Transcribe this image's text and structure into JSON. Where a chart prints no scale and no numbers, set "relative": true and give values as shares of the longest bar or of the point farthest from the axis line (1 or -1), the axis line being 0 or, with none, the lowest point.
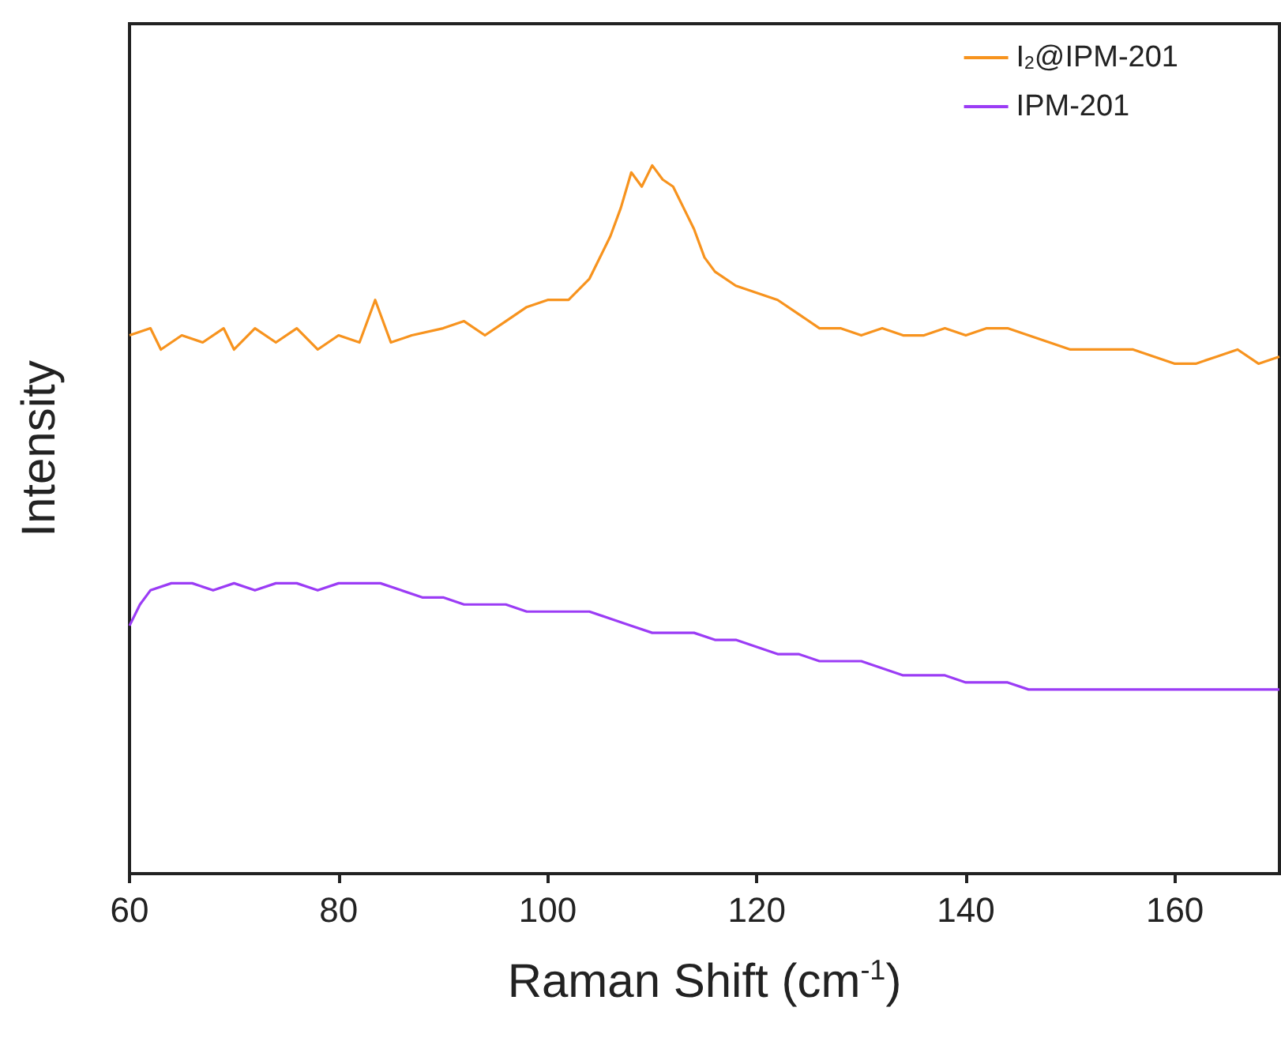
{
  "chart_data": {
    "type": "line",
    "xlabel": "Raman Shift (cm$^{-1}$)",
    "ylabel": "Intensity",
    "relative": true,
    "xlim": [
      60,
      170
    ],
    "xticks": [
      60,
      80,
      100,
      120,
      140,
      160
    ],
    "legend": "top right",
    "marker": "none",
    "series": [
      {
        "name": "I$_{2}$@IPM-201",
        "color": "#f7931e",
        "x": [
          60,
          62,
          63,
          65,
          67,
          69,
          70,
          72,
          74,
          76,
          78,
          80,
          82,
          83.5,
          85,
          87,
          90,
          92,
          94,
          96,
          98,
          100,
          102,
          104,
          106,
          107,
          108,
          109,
          110,
          111,
          112,
          113,
          114,
          115,
          116,
          118,
          120,
          122,
          124,
          126,
          128,
          130,
          132,
          134,
          136,
          138,
          140,
          142,
          144,
          146,
          148,
          150,
          152,
          154,
          156,
          158,
          160,
          162,
          164,
          166,
          168,
          170
        ],
        "values": [
          0.76,
          0.77,
          0.74,
          0.76,
          0.75,
          0.77,
          0.74,
          0.77,
          0.75,
          0.77,
          0.74,
          0.76,
          0.75,
          0.81,
          0.75,
          0.76,
          0.77,
          0.78,
          0.76,
          0.78,
          0.8,
          0.81,
          0.81,
          0.84,
          0.9,
          0.94,
          0.99,
          0.97,
          1,
          0.98,
          0.97,
          0.94,
          0.91,
          0.87,
          0.85,
          0.83,
          0.82,
          0.81,
          0.79,
          0.77,
          0.77,
          0.76,
          0.77,
          0.76,
          0.76,
          0.77,
          0.76,
          0.77,
          0.77,
          0.76,
          0.75,
          0.74,
          0.74,
          0.74,
          0.74,
          0.73,
          0.72,
          0.72,
          0.73,
          0.74,
          0.72,
          0.73
        ]
      },
      {
        "name": "IPM-201",
        "color": "#9b3cf5",
        "x": [
          60,
          61,
          62,
          64,
          66,
          68,
          70,
          72,
          74,
          76,
          78,
          80,
          82,
          84,
          86,
          88,
          90,
          92,
          94,
          96,
          98,
          100,
          102,
          104,
          106,
          108,
          110,
          112,
          114,
          116,
          118,
          120,
          122,
          124,
          126,
          128,
          130,
          132,
          134,
          136,
          138,
          140,
          142,
          144,
          146,
          148,
          150,
          152,
          154,
          156,
          158,
          160,
          162,
          164,
          166,
          168,
          170
        ],
        "values": [
          0.35,
          0.38,
          0.4,
          0.41,
          0.41,
          0.4,
          0.41,
          0.4,
          0.41,
          0.41,
          0.4,
          0.41,
          0.41,
          0.41,
          0.4,
          0.39,
          0.39,
          0.38,
          0.38,
          0.38,
          0.37,
          0.37,
          0.37,
          0.37,
          0.36,
          0.35,
          0.34,
          0.34,
          0.34,
          0.33,
          0.33,
          0.32,
          0.31,
          0.31,
          0.3,
          0.3,
          0.3,
          0.29,
          0.28,
          0.28,
          0.28,
          0.27,
          0.27,
          0.27,
          0.26,
          0.26,
          0.26,
          0.26,
          0.26,
          0.26,
          0.26,
          0.26,
          0.26,
          0.26,
          0.26,
          0.26,
          0.26
        ]
      }
    ]
  }
}
